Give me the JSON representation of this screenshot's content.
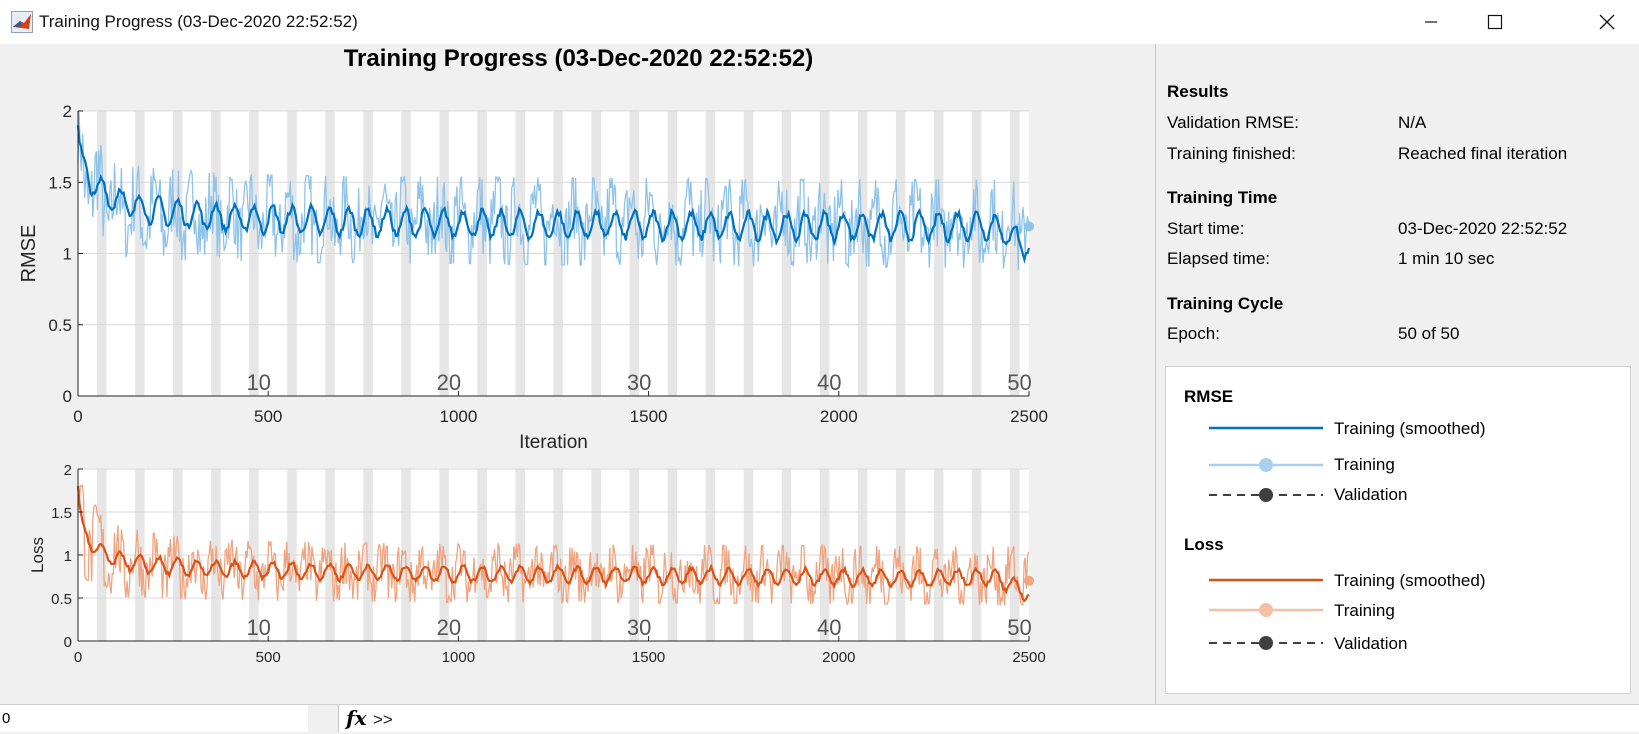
{
  "window": {
    "title": "Training Progress (03-Dec-2020 22:52:52)"
  },
  "plot": {
    "title": "Training Progress (03-Dec-2020 22:52:52)"
  },
  "colors": {
    "rmse_smoothed": "#0072bd",
    "rmse_raw": "#8fc3ea",
    "loss_smoothed": "#d95319",
    "loss_raw": "#f0a47f",
    "validation": "#404040",
    "epoch_band": "#e6e6e6"
  },
  "side_panel": {
    "results": {
      "heading": "Results",
      "rows": [
        {
          "label": "Validation RMSE:",
          "value": "N/A"
        },
        {
          "label": "Training finished:",
          "value": "Reached final iteration"
        }
      ]
    },
    "time": {
      "heading": "Training Time",
      "rows": [
        {
          "label": "Start time:",
          "value": "03-Dec-2020 22:52:52"
        },
        {
          "label": "Elapsed time:",
          "value": "1 min 10 sec"
        }
      ]
    },
    "cycle": {
      "heading": "Training Cycle",
      "rows": [
        {
          "label": "Epoch:",
          "value": "50 of 50"
        }
      ]
    }
  },
  "legend": {
    "rmse": {
      "heading": "RMSE",
      "items": [
        "Training (smoothed)",
        "Training",
        "Validation"
      ]
    },
    "loss": {
      "heading": "Loss",
      "items": [
        "Training (smoothed)",
        "Training",
        "Validation"
      ]
    }
  },
  "command_bar": {
    "left_text": "0",
    "fx": "fx",
    "prompt": ">>"
  },
  "chart_data": [
    {
      "type": "line",
      "ylabel": "RMSE",
      "xlabel": "Iteration",
      "xlim": [
        0,
        2500
      ],
      "ylim": [
        0,
        2
      ],
      "x_ticks": [
        0,
        500,
        1000,
        1500,
        2000,
        2500
      ],
      "y_ticks": [
        0,
        0.5,
        1,
        1.5,
        2
      ],
      "y_tick_labels": [
        "0",
        "0.5",
        "1",
        "1.5",
        "2"
      ],
      "epoch_labels": [
        {
          "epoch": 10,
          "label": "10"
        },
        {
          "epoch": 20,
          "label": "20"
        },
        {
          "epoch": 30,
          "label": "30"
        },
        {
          "epoch": 40,
          "label": "40"
        },
        {
          "epoch": 50,
          "label": "50"
        }
      ],
      "epochs": 50,
      "iterations_per_epoch": 50,
      "series": [
        {
          "name": "Training (smoothed)",
          "x": [
            0,
            10,
            25,
            50,
            75,
            100,
            150,
            200,
            300,
            400,
            500,
            750,
            1000,
            1250,
            1500,
            1750,
            2000,
            2250,
            2400,
            2500
          ],
          "y": [
            1.9,
            1.6,
            1.55,
            1.45,
            1.42,
            1.38,
            1.33,
            1.3,
            1.27,
            1.25,
            1.24,
            1.22,
            1.21,
            1.2,
            1.2,
            1.19,
            1.19,
            1.19,
            1.2,
            1.05
          ]
        },
        {
          "name": "Training",
          "x": [
            0,
            10,
            25,
            50,
            75,
            100,
            150,
            200,
            300,
            400,
            500,
            750,
            1000,
            1250,
            1500,
            1750,
            2000,
            2250,
            2400,
            2500
          ],
          "y": [
            2.0,
            1.85,
            1.7,
            1.6,
            1.5,
            1.45,
            1.4,
            1.35,
            1.3,
            1.28,
            1.27,
            1.25,
            1.23,
            1.22,
            1.22,
            1.21,
            1.21,
            1.2,
            1.2,
            1.19
          ],
          "band_low": [
            1.5,
            1.25,
            1.15,
            1.05,
            1.0,
            0.98,
            0.97,
            0.96,
            0.95,
            0.95,
            0.94,
            0.93,
            0.93,
            0.92,
            0.92,
            0.91,
            0.91,
            0.9,
            0.9,
            0.88
          ],
          "band_high": [
            2.0,
            2.0,
            1.85,
            1.8,
            1.7,
            1.65,
            1.62,
            1.6,
            1.58,
            1.56,
            1.55,
            1.54,
            1.54,
            1.53,
            1.53,
            1.52,
            1.52,
            1.52,
            1.52,
            1.5
          ]
        },
        {
          "name": "Validation",
          "x": [],
          "y": []
        }
      ]
    },
    {
      "type": "line",
      "ylabel": "Loss",
      "xlabel": "Iteration",
      "xlim": [
        0,
        2500
      ],
      "ylim": [
        0,
        2
      ],
      "x_ticks": [
        0,
        500,
        1000,
        1500,
        2000,
        2500
      ],
      "y_ticks": [
        0,
        0.5,
        1,
        1.5,
        2
      ],
      "y_tick_labels": [
        "0",
        "0.5",
        "1",
        "1.5",
        "2"
      ],
      "epoch_labels": [
        {
          "epoch": 10,
          "label": "10"
        },
        {
          "epoch": 20,
          "label": "20"
        },
        {
          "epoch": 30,
          "label": "30"
        },
        {
          "epoch": 40,
          "label": "40"
        },
        {
          "epoch": 50,
          "label": "50"
        }
      ],
      "epochs": 50,
      "iterations_per_epoch": 50,
      "series": [
        {
          "name": "Training (smoothed)",
          "x": [
            0,
            10,
            25,
            50,
            75,
            100,
            150,
            200,
            300,
            400,
            500,
            750,
            1000,
            1250,
            1500,
            1750,
            2000,
            2250,
            2400,
            2500
          ],
          "y": [
            1.8,
            1.3,
            1.2,
            1.05,
            1.0,
            0.95,
            0.9,
            0.88,
            0.85,
            0.83,
            0.82,
            0.8,
            0.78,
            0.77,
            0.76,
            0.75,
            0.74,
            0.73,
            0.75,
            0.55
          ]
        },
        {
          "name": "Training",
          "x": [
            0,
            10,
            25,
            50,
            75,
            100,
            150,
            200,
            300,
            400,
            500,
            750,
            1000,
            1250,
            1500,
            1750,
            2000,
            2250,
            2400,
            2500
          ],
          "y": [
            2.0,
            1.7,
            1.4,
            1.25,
            1.15,
            1.1,
            1.0,
            0.95,
            0.9,
            0.88,
            0.86,
            0.84,
            0.82,
            0.8,
            0.79,
            0.78,
            0.77,
            0.76,
            0.75,
            0.7
          ],
          "band_low": [
            1.2,
            0.8,
            0.7,
            0.6,
            0.55,
            0.52,
            0.5,
            0.5,
            0.48,
            0.48,
            0.47,
            0.46,
            0.45,
            0.45,
            0.44,
            0.44,
            0.43,
            0.43,
            0.42,
            0.4
          ],
          "band_high": [
            2.0,
            2.0,
            1.7,
            1.55,
            1.45,
            1.35,
            1.3,
            1.25,
            1.2,
            1.18,
            1.16,
            1.14,
            1.13,
            1.12,
            1.12,
            1.11,
            1.11,
            1.1,
            1.1,
            1.1
          ]
        },
        {
          "name": "Validation",
          "x": [],
          "y": []
        }
      ]
    }
  ]
}
